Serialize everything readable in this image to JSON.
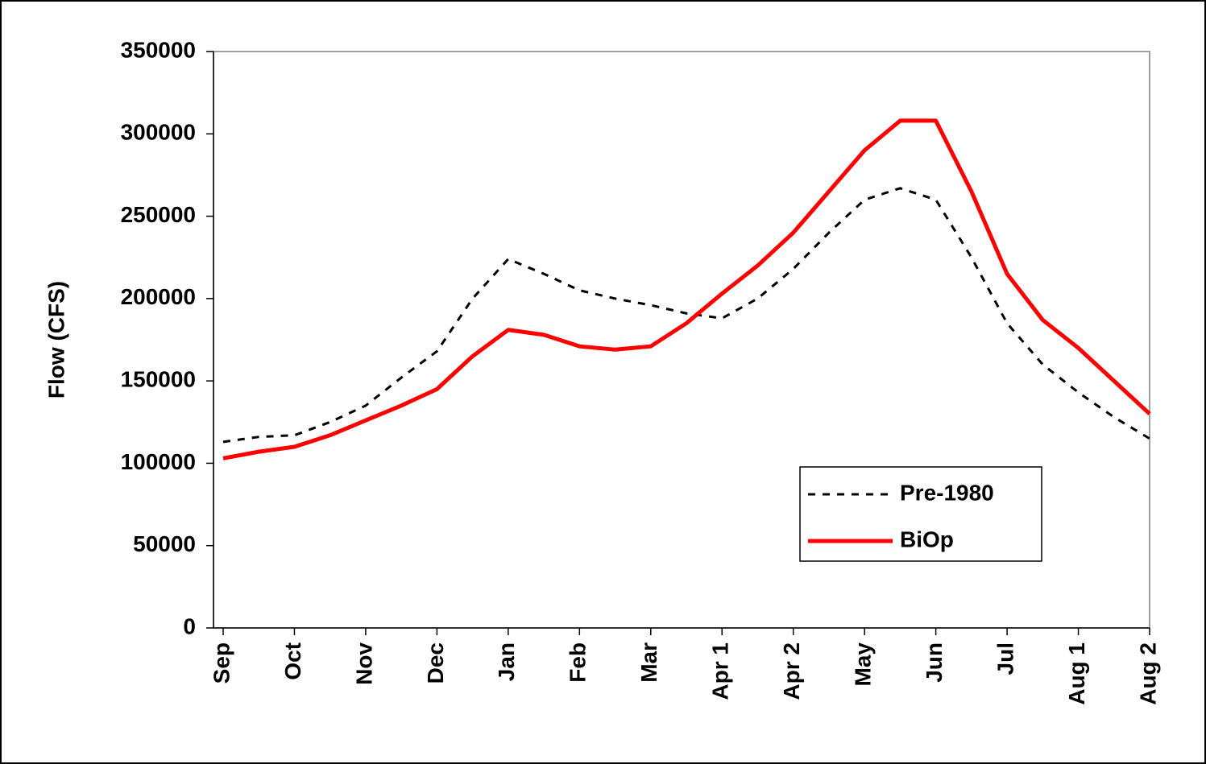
{
  "chart_data": {
    "type": "line",
    "y_label": "Flow (CFS)",
    "categories": [
      "Sep",
      null,
      "Oct",
      null,
      "Nov",
      null,
      "Dec",
      null,
      "Jan",
      null,
      "Feb",
      null,
      "Mar",
      null,
      "Apr 1",
      null,
      "Apr 2",
      null,
      "May",
      null,
      "Jun",
      null,
      "Jul",
      null,
      "Aug 1",
      null,
      "Aug 2"
    ],
    "series": [
      {
        "name": "Pre-1980",
        "color": "#000000",
        "style": "dashed",
        "values": [
          113000,
          116000,
          117000,
          125000,
          135000,
          152000,
          168000,
          200000,
          224000,
          215000,
          205000,
          200000,
          196000,
          191000,
          188000,
          200000,
          218000,
          240000,
          260000,
          267000,
          260000,
          225000,
          185000,
          160000,
          143000,
          128000,
          115000
        ]
      },
      {
        "name": "BiOp",
        "color": "#ff0000",
        "style": "solid",
        "values": [
          103000,
          107000,
          110000,
          117000,
          126000,
          135000,
          145000,
          165000,
          181000,
          178000,
          171000,
          169000,
          171000,
          185000,
          203000,
          220000,
          240000,
          265000,
          290000,
          308000,
          308000,
          265000,
          215000,
          187000,
          170000,
          150000,
          130000
        ]
      }
    ],
    "ylim": [
      0,
      350000
    ],
    "yticks": [
      0,
      50000,
      100000,
      150000,
      200000,
      250000,
      300000,
      350000
    ],
    "grid": false,
    "legend": "lower-right"
  }
}
